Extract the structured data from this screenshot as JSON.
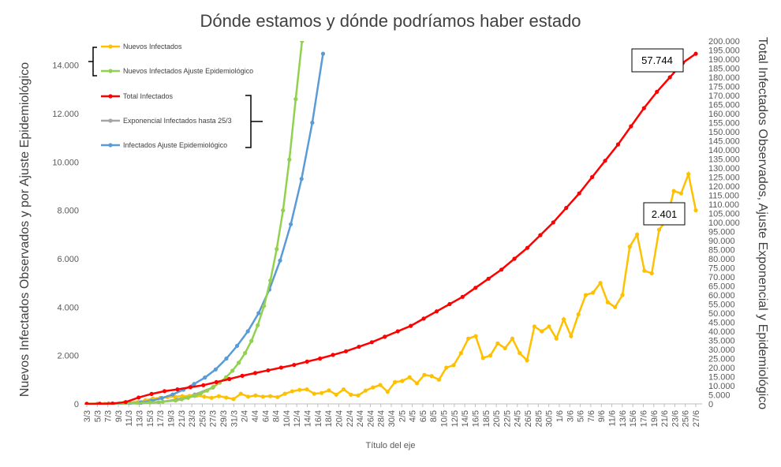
{
  "chart_data": {
    "type": "line",
    "title": "Dónde estamos y dónde podríamos haber estado",
    "xlabel": "Título del eje",
    "ylabel_left": "Nuevos Infectados Observados y por Ajuste Epidemiológico",
    "ylabel_right": "Total Infectados Observados, Ajuste Exponencial y Epidemiológico",
    "ylim_left": [
      0,
      15000
    ],
    "ylim_right": [
      0,
      200000
    ],
    "y_ticks_left": [
      "0",
      "2.000",
      "4.000",
      "6.000",
      "8.000",
      "10.000",
      "12.000",
      "14.000"
    ],
    "y_ticks_right": [
      "0",
      "5.000",
      "10.000",
      "15.000",
      "20.000",
      "25.000",
      "30.000",
      "35.000",
      "40.000",
      "45.000",
      "50.000",
      "55.000",
      "60.000",
      "65.000",
      "70.000",
      "75.000",
      "80.000",
      "85.000",
      "90.000",
      "95.000",
      "100.000",
      "105.000",
      "110.000",
      "115.000",
      "120.000",
      "125.000",
      "130.000",
      "135.000",
      "140.000",
      "145.000",
      "150.000",
      "155.000",
      "160.000",
      "165.000",
      "170.000",
      "175.000",
      "180.000",
      "185.000",
      "190.000",
      "195.000",
      "200.000"
    ],
    "x_ticks": [
      "3/3",
      "5/3",
      "7/3",
      "9/3",
      "11/3",
      "13/3",
      "15/3",
      "17/3",
      "19/3",
      "21/3",
      "23/3",
      "25/3",
      "27/3",
      "29/3",
      "31/3",
      "2/4",
      "4/4",
      "6/4",
      "8/4",
      "10/4",
      "12/4",
      "14/4",
      "16/4",
      "18/4",
      "20/4",
      "22/4",
      "24/4",
      "26/4",
      "28/4",
      "30/4",
      "2/5",
      "4/5",
      "6/5",
      "8/5",
      "10/5",
      "12/5",
      "14/5",
      "16/5",
      "18/5",
      "20/5",
      "22/5",
      "24/5",
      "26/5",
      "28/5",
      "30/5",
      "1/6",
      "3/6",
      "5/6",
      "7/6",
      "9/6",
      "11/6",
      "13/6",
      "15/6",
      "17/6",
      "19/6",
      "21/6",
      "23/6",
      "25/6",
      "27/6"
    ],
    "grid": false,
    "legend_position": "top-left",
    "callouts": [
      "57.744",
      "2.401"
    ],
    "legend_groups": [
      {
        "label": "Nuevos Infectados",
        "color": "#FFC000",
        "axis": "left"
      },
      {
        "label": "Nuevos Infectados Ajuste Epidemiológico",
        "color": "#92D050",
        "axis": "left"
      },
      {
        "label": "Total Infectados",
        "color": "#FF0000",
        "axis": "right"
      },
      {
        "label": "Exponencial Infectados hasta 25/3",
        "color": "#A5A5A5",
        "axis": "right"
      },
      {
        "label": "Infectados Ajuste Epidemiológico",
        "color": "#5B9BD5",
        "axis": "right"
      }
    ],
    "series": [
      {
        "name": "Nuevos Infectados",
        "color": "#FFC000",
        "axis": "left",
        "points": [
          [
            0,
            10
          ],
          [
            6,
            25
          ],
          [
            10,
            40
          ],
          [
            14,
            80
          ],
          [
            16,
            150
          ],
          [
            18,
            220
          ],
          [
            20,
            250
          ],
          [
            22,
            280
          ],
          [
            24,
            300
          ],
          [
            26,
            320
          ],
          [
            28,
            330
          ],
          [
            30,
            340
          ],
          [
            32,
            300
          ],
          [
            34,
            250
          ],
          [
            36,
            320
          ],
          [
            38,
            260
          ],
          [
            40,
            200
          ],
          [
            42,
            420
          ],
          [
            44,
            300
          ],
          [
            46,
            350
          ],
          [
            48,
            300
          ],
          [
            50,
            320
          ],
          [
            52,
            280
          ],
          [
            54,
            420
          ],
          [
            56,
            520
          ],
          [
            58,
            580
          ],
          [
            60,
            600
          ],
          [
            62,
            420
          ],
          [
            64,
            450
          ],
          [
            66,
            560
          ],
          [
            68,
            380
          ],
          [
            70,
            600
          ],
          [
            72,
            380
          ],
          [
            74,
            350
          ],
          [
            76,
            550
          ],
          [
            78,
            680
          ],
          [
            80,
            780
          ],
          [
            82,
            500
          ],
          [
            84,
            900
          ],
          [
            86,
            950
          ],
          [
            88,
            1100
          ],
          [
            90,
            850
          ],
          [
            92,
            1200
          ],
          [
            94,
            1150
          ],
          [
            96,
            1000
          ],
          [
            98,
            1500
          ],
          [
            100,
            1600
          ],
          [
            102,
            2100
          ],
          [
            104,
            2700
          ],
          [
            106,
            2800
          ],
          [
            108,
            1900
          ],
          [
            110,
            2000
          ],
          [
            112,
            2500
          ],
          [
            114,
            2300
          ],
          [
            116,
            2700
          ],
          [
            118,
            2100
          ],
          [
            120,
            1800
          ],
          [
            122,
            3200
          ],
          [
            124,
            3000
          ],
          [
            126,
            3200
          ],
          [
            128,
            2700
          ],
          [
            130,
            3500
          ],
          [
            132,
            2800
          ],
          [
            134,
            3700
          ],
          [
            136,
            4500
          ],
          [
            138,
            4600
          ],
          [
            140,
            5000
          ],
          [
            142,
            4200
          ],
          [
            144,
            4000
          ],
          [
            146,
            4500
          ],
          [
            148,
            6500
          ],
          [
            150,
            7000
          ],
          [
            152,
            5500
          ],
          [
            154,
            5400
          ],
          [
            156,
            7200
          ],
          [
            158,
            7600
          ],
          [
            160,
            8800
          ],
          [
            162,
            8700
          ],
          [
            164,
            9500
          ],
          [
            166,
            8000
          ]
        ]
      },
      {
        "name": "Nuevos Infectados Ajuste Epidemiológico",
        "color": "#92D050",
        "axis": "left",
        "points": [
          [
            0,
            5
          ],
          [
            4,
            10
          ],
          [
            8,
            15
          ],
          [
            12,
            25
          ],
          [
            16,
            35
          ],
          [
            20,
            60
          ],
          [
            24,
            90
          ],
          [
            28,
            140
          ],
          [
            30,
            190
          ],
          [
            32,
            250
          ],
          [
            34,
            330
          ],
          [
            36,
            430
          ],
          [
            38,
            550
          ],
          [
            40,
            700
          ],
          [
            42,
            880
          ],
          [
            44,
            1100
          ],
          [
            46,
            1370
          ],
          [
            48,
            1700
          ],
          [
            50,
            2100
          ],
          [
            52,
            2600
          ],
          [
            54,
            3250
          ],
          [
            56,
            4050
          ],
          [
            58,
            5100
          ],
          [
            60,
            6400
          ],
          [
            62,
            8000
          ],
          [
            64,
            10100
          ],
          [
            66,
            12600
          ],
          [
            68,
            15000
          ]
        ]
      },
      {
        "name": "Total Infectados",
        "color": "#FF0000",
        "axis": "right",
        "points": [
          [
            0,
            10
          ],
          [
            10,
            50
          ],
          [
            20,
            200
          ],
          [
            30,
            1000
          ],
          [
            40,
            3500
          ],
          [
            50,
            5500
          ],
          [
            60,
            7000
          ],
          [
            70,
            8000
          ],
          [
            80,
            9200
          ],
          [
            90,
            10300
          ],
          [
            100,
            12000
          ],
          [
            110,
            13700
          ],
          [
            120,
            15500
          ],
          [
            130,
            17000
          ],
          [
            140,
            18500
          ],
          [
            150,
            20000
          ],
          [
            160,
            21500
          ],
          [
            170,
            23300
          ],
          [
            180,
            25000
          ],
          [
            190,
            27000
          ],
          [
            200,
            29000
          ],
          [
            210,
            31500
          ],
          [
            220,
            34000
          ],
          [
            230,
            37000
          ],
          [
            240,
            40000
          ],
          [
            250,
            43000
          ],
          [
            260,
            47000
          ],
          [
            270,
            51000
          ],
          [
            280,
            55000
          ],
          [
            290,
            59000
          ],
          [
            300,
            64000
          ],
          [
            310,
            69000
          ],
          [
            320,
            74000
          ],
          [
            330,
            80000
          ],
          [
            340,
            86000
          ],
          [
            350,
            93000
          ],
          [
            360,
            100000
          ],
          [
            370,
            108000
          ],
          [
            380,
            116000
          ],
          [
            390,
            125000
          ],
          [
            400,
            134000
          ],
          [
            410,
            143000
          ],
          [
            420,
            153000
          ],
          [
            430,
            163000
          ],
          [
            440,
            172000
          ],
          [
            450,
            180000
          ],
          [
            460,
            188000
          ],
          [
            470,
            193000
          ]
        ]
      },
      {
        "name": "Exponencial Infectados hasta 25/3",
        "color": "#A5A5A5",
        "axis": "right",
        "points": [
          [
            0,
            0
          ],
          [
            10,
            20
          ],
          [
            20,
            80
          ],
          [
            30,
            300
          ],
          [
            40,
            900
          ],
          [
            50,
            2400
          ],
          [
            60,
            5200
          ],
          [
            70,
            9000
          ]
        ]
      },
      {
        "name": "Infectados Ajuste Epidemiológico",
        "color": "#5B9BD5",
        "axis": "right",
        "points": [
          [
            0,
            0
          ],
          [
            10,
            10
          ],
          [
            20,
            30
          ],
          [
            30,
            100
          ],
          [
            40,
            300
          ],
          [
            50,
            800
          ],
          [
            60,
            1700
          ],
          [
            70,
            3200
          ],
          [
            80,
            5200
          ],
          [
            90,
            7800
          ],
          [
            100,
            11000
          ],
          [
            110,
            14500
          ],
          [
            120,
            19000
          ],
          [
            130,
            25000
          ],
          [
            140,
            32000
          ],
          [
            150,
            40000
          ],
          [
            160,
            50000
          ],
          [
            170,
            63000
          ],
          [
            180,
            79000
          ],
          [
            190,
            99000
          ],
          [
            200,
            124000
          ],
          [
            210,
            155000
          ],
          [
            220,
            193000
          ]
        ]
      }
    ]
  }
}
